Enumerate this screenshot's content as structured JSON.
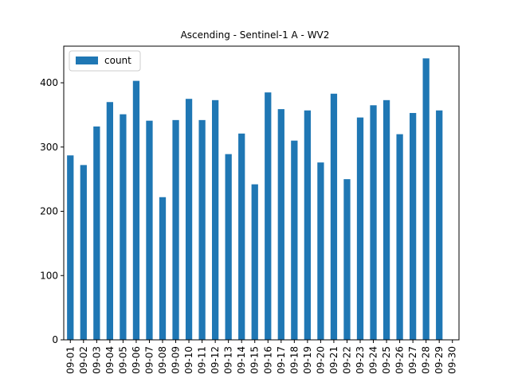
{
  "chart_data": {
    "type": "bar",
    "title": "Ascending - Sentinel-1 A - WV2",
    "xlabel": "",
    "ylabel": "",
    "categories": [
      "09-01",
      "09-02",
      "09-03",
      "09-04",
      "09-05",
      "09-06",
      "09-07",
      "09-08",
      "09-09",
      "09-10",
      "09-11",
      "09-12",
      "09-13",
      "09-14",
      "09-15",
      "09-16",
      "09-17",
      "09-18",
      "09-19",
      "09-20",
      "09-21",
      "09-22",
      "09-23",
      "09-24",
      "09-25",
      "09-26",
      "09-27",
      "09-28",
      "09-29",
      "09-30"
    ],
    "series": [
      {
        "name": "count",
        "color": "#1f77b4",
        "values": [
          287,
          272,
          332,
          370,
          351,
          403,
          341,
          222,
          342,
          375,
          342,
          373,
          289,
          321,
          242,
          385,
          359,
          310,
          357,
          276,
          383,
          250,
          346,
          365,
          373,
          320,
          353,
          438,
          357,
          0
        ]
      }
    ],
    "ylim": [
      0,
      457
    ],
    "yticks": [
      0,
      100,
      200,
      300,
      400
    ],
    "legend": {
      "position": "top-left",
      "entries": [
        "count"
      ]
    },
    "grid": false
  }
}
